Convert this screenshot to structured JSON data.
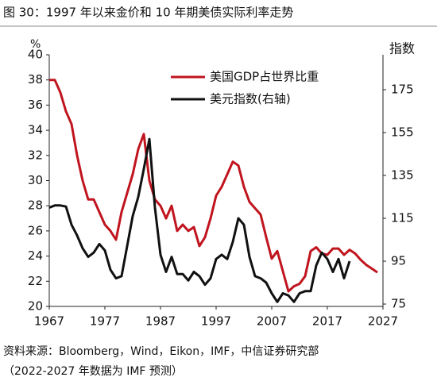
{
  "chart_data": {
    "type": "line",
    "title": "图 30：1997 年以来金价和 10 年期美债实际利率走势",
    "source": "资料来源：Bloomberg，Wind，Eikon，IMF，中信证券研究部",
    "note": "（2022-2027 年数据为 IMF 预测）",
    "ylabel": "%",
    "y2label": "指数",
    "x": [
      1967,
      1968,
      1969,
      1970,
      1971,
      1972,
      1973,
      1974,
      1975,
      1976,
      1977,
      1978,
      1979,
      1980,
      1981,
      1982,
      1983,
      1984,
      1985,
      1986,
      1987,
      1988,
      1989,
      1990,
      1991,
      1992,
      1993,
      1994,
      1995,
      1996,
      1997,
      1998,
      1999,
      2000,
      2001,
      2002,
      2003,
      2004,
      2005,
      2006,
      2007,
      2008,
      2009,
      2010,
      2011,
      2012,
      2013,
      2014,
      2015,
      2016,
      2017,
      2018,
      2019,
      2020,
      2021,
      2022,
      2023,
      2024,
      2025,
      2026,
      2027
    ],
    "series": [
      {
        "name": "美国GDP占世界比重",
        "color": "#c0141e",
        "values": [
          38,
          38,
          37,
          35.5,
          34.5,
          32,
          30,
          28.5,
          28.5,
          27.5,
          26.5,
          26,
          25.3,
          27.5,
          29,
          30.5,
          32.5,
          33.7,
          30,
          28.5,
          28,
          27,
          28,
          26,
          26.5,
          26,
          26.3,
          24.8,
          25.5,
          27,
          28.8,
          29.5,
          30.5,
          31.5,
          31.2,
          29.5,
          28.3,
          27.8,
          27.3,
          25.5,
          23.8,
          24.4,
          22.8,
          21.2,
          21.6,
          21.8,
          22.4,
          24.4,
          24.7,
          24.2,
          24.1,
          24.6,
          24.6,
          24.1,
          24.5,
          24.2,
          23.7,
          23.3,
          23,
          22.7,
          null
        ]
      },
      {
        "name": "美元指数(右轴)",
        "color": "#111111",
        "axis": "y2",
        "values": [
          120,
          121,
          121,
          120.5,
          112,
          107,
          101,
          97,
          99,
          103,
          100,
          91,
          87,
          88,
          102,
          116,
          125,
          138,
          152,
          120,
          98,
          90,
          97,
          89,
          89,
          86,
          90,
          88,
          84,
          87,
          96,
          98,
          96,
          104,
          115,
          112,
          97,
          88,
          87,
          85,
          80,
          76,
          80,
          79,
          76,
          80,
          81,
          81,
          93,
          99,
          96,
          90,
          96,
          87,
          95,
          null,
          null,
          null,
          null,
          null,
          null
        ]
      }
    ],
    "xlim": [
      1967,
      2027
    ],
    "xticks": [
      1967,
      1977,
      1987,
      1997,
      2007,
      2017,
      2027
    ],
    "ylim": [
      20,
      40
    ],
    "yticks": [
      20,
      22,
      24,
      26,
      28,
      30,
      32,
      34,
      36,
      38,
      40
    ],
    "y2lim": [
      73.9,
      191.3
    ],
    "y2ticks": [
      75,
      95,
      115,
      135,
      155,
      175
    ]
  }
}
